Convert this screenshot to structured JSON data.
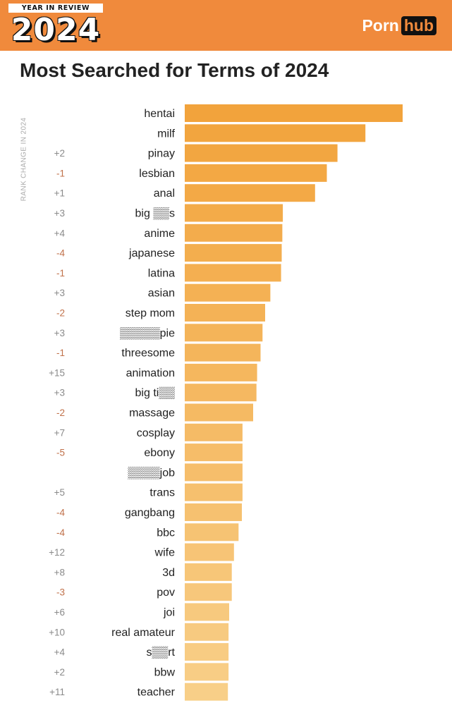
{
  "banner": {
    "badge_top": "YEAR IN REVIEW",
    "badge_year": "2024",
    "logo_left": "Porn",
    "logo_right": "hub",
    "color": "#f08a3c"
  },
  "title": "Most Searched for Terms of 2024",
  "chart_data": {
    "type": "bar",
    "orientation": "horizontal",
    "title": "Most Searched for Terms of 2024",
    "side_label": "RANK CHANGE IN 2024",
    "categories": [
      "hentai",
      "milf",
      "pinay",
      "lesbian",
      "anal",
      "big ▒▒s",
      "anime",
      "japanese",
      "latina",
      "asian",
      "step mom",
      "▒▒▒▒▒pie",
      "threesome",
      "animation",
      "big ti▒▒",
      "massage",
      "cosplay",
      "ebony",
      "▒▒▒▒job",
      "trans",
      "gangbang",
      "bbc",
      "wife",
      "3d",
      "pov",
      "joi",
      "real amateur",
      "s▒▒rt",
      "bbw",
      "teacher"
    ],
    "rank_change": [
      "",
      "",
      "+2",
      "-1",
      "+1",
      "+3",
      "+4",
      "-4",
      "-1",
      "+3",
      "-2",
      "+3",
      "-1",
      "+15",
      "+3",
      "-2",
      "+7",
      "-5",
      "",
      "+5",
      "-4",
      "-4",
      "+12",
      "+8",
      "-3",
      "+6",
      "+10",
      "+4",
      "+2",
      "+11"
    ],
    "values": [
      100,
      82.9,
      70.1,
      65.2,
      59.8,
      45.0,
      44.8,
      44.5,
      44.2,
      39.3,
      36.9,
      35.7,
      34.8,
      33.2,
      32.9,
      31.4,
      26.5,
      26.5,
      26.5,
      26.5,
      26.2,
      24.7,
      22.6,
      21.6,
      21.6,
      20.4,
      20.1,
      20.1,
      20.1,
      19.8
    ],
    "xlim": [
      0,
      100
    ],
    "colors": {
      "bar_dark": "#f2a33c",
      "bar_light": "#f8cf88",
      "positive_change": "#8a8a8a",
      "negative_change": "#c0714a"
    }
  }
}
